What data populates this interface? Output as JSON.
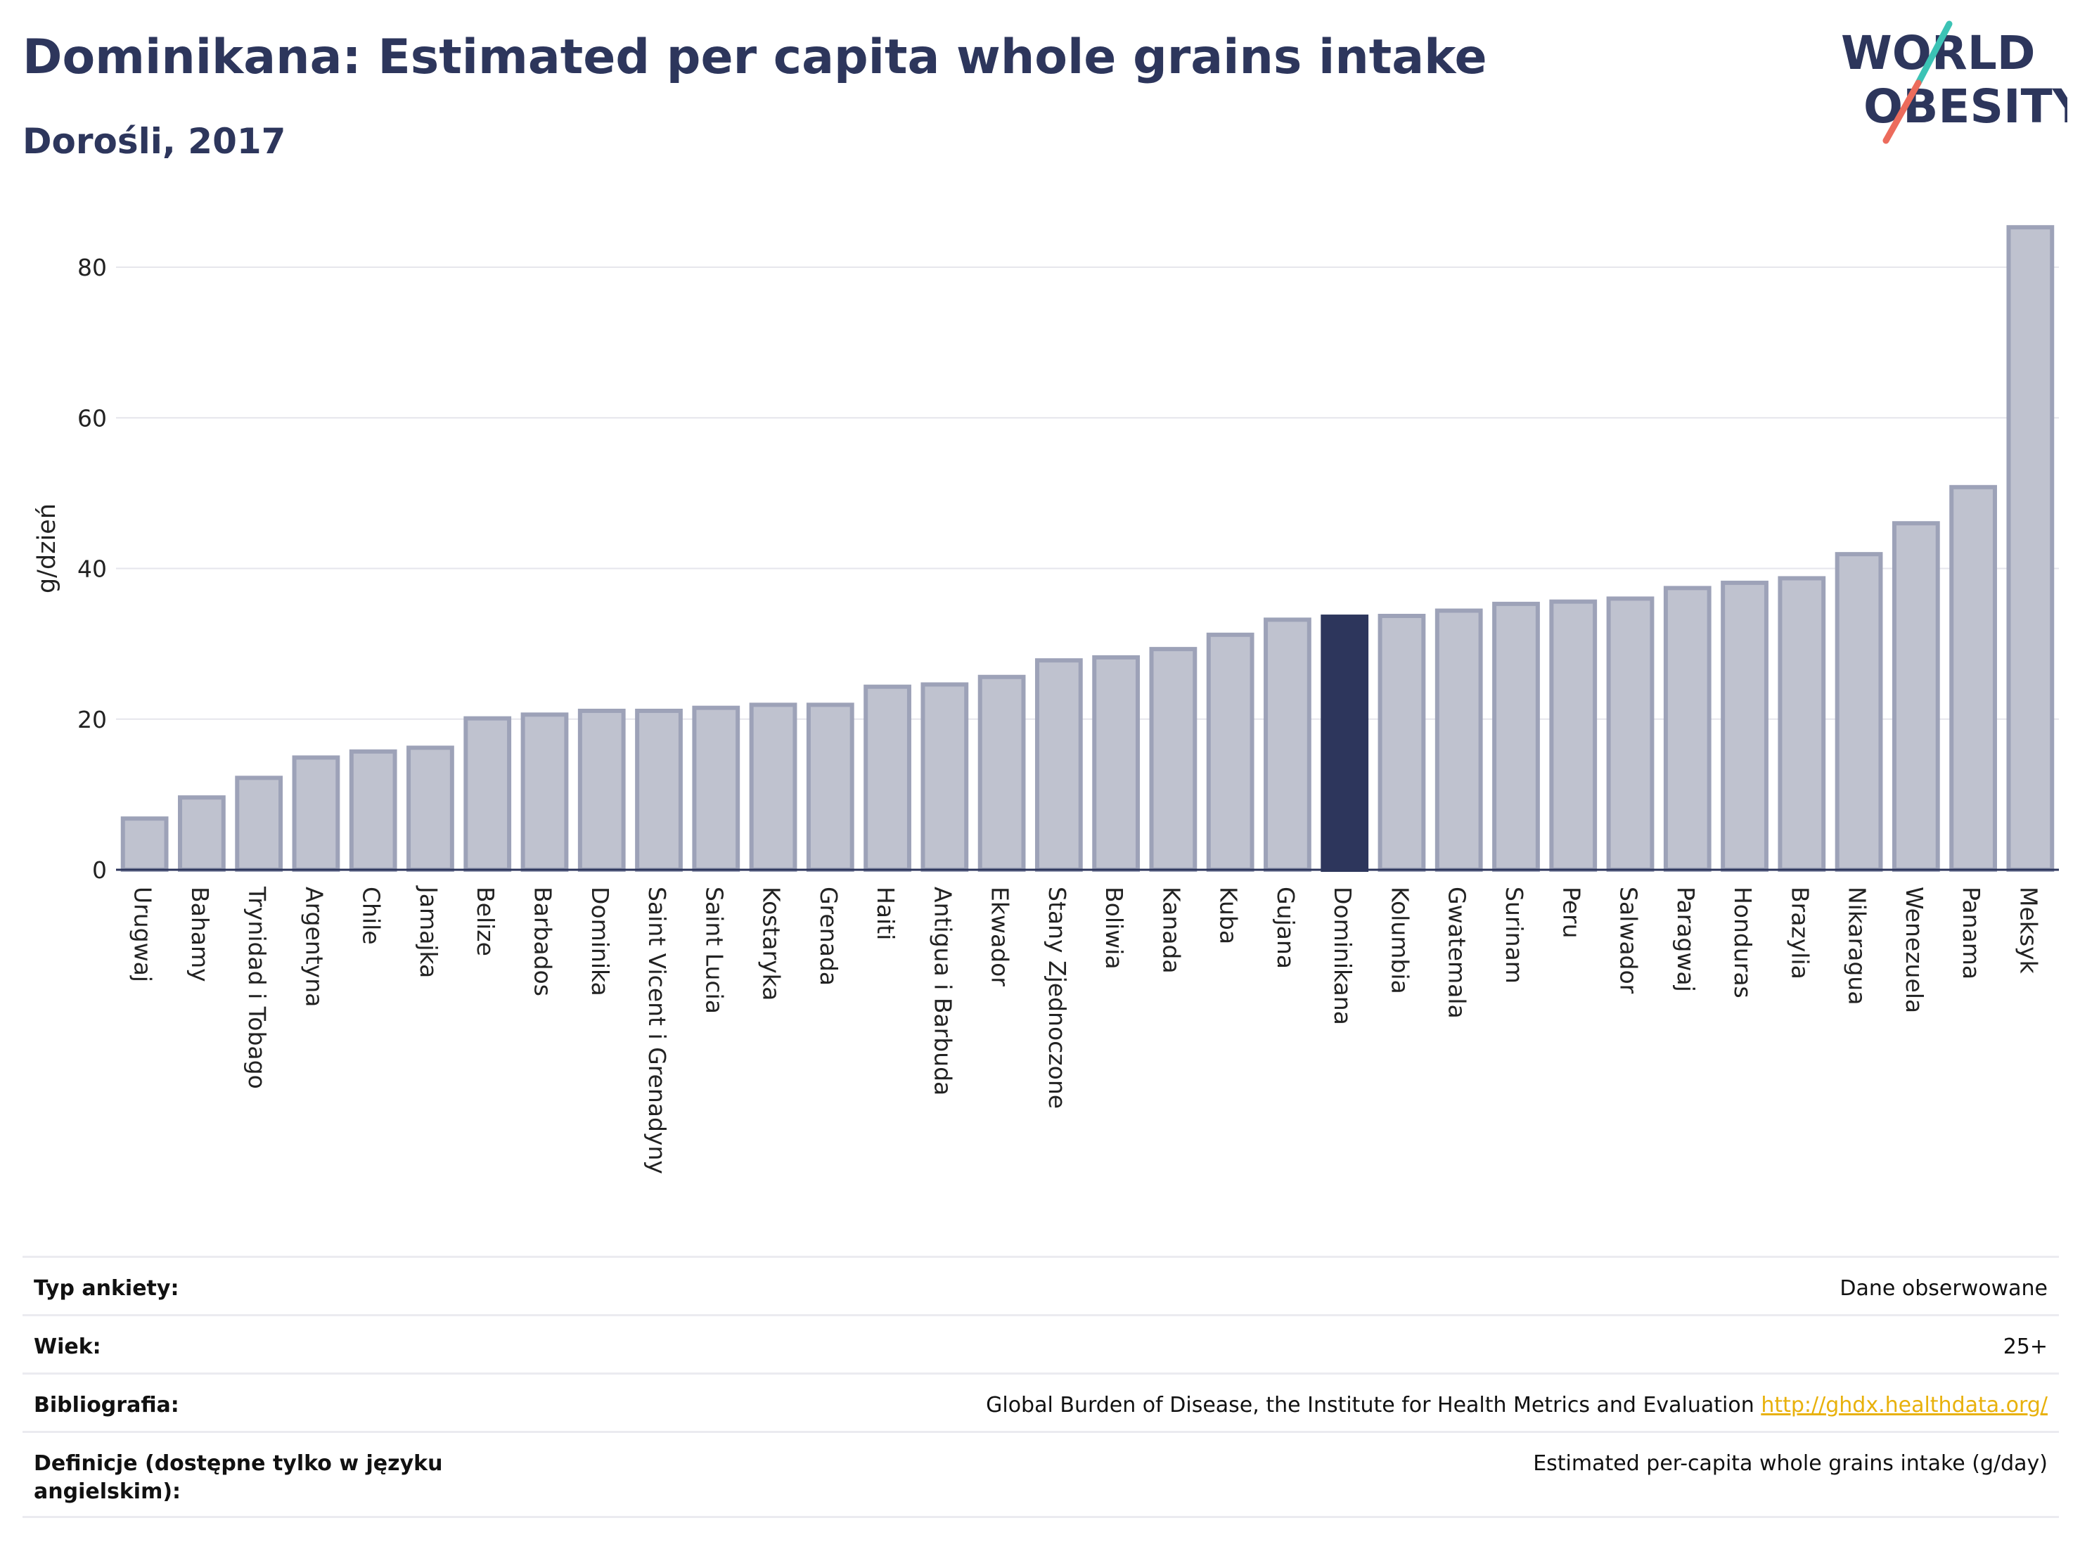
{
  "header": {
    "title": "Dominikana: Estimated per capita whole grains intake",
    "subtitle": "Dorośli, 2017",
    "logo_line1": "WORLD",
    "logo_line2": "OBESITY"
  },
  "colors": {
    "bar_fill": "#bfc2cf",
    "bar_stroke": "#9da2b8",
    "highlight": "#2d365c",
    "title": "#2d365c",
    "link": "#e8b10c",
    "logo_teal": "#3cc3b5",
    "logo_coral": "#ec6b5c"
  },
  "chart_data": {
    "type": "bar",
    "title": "Dominikana: Estimated per capita whole grains intake",
    "subtitle": "Dorośli, 2017",
    "xlabel": "",
    "ylabel": "g/dzień",
    "ylim": [
      0,
      88
    ],
    "yticks": [
      0,
      20,
      40,
      60,
      80
    ],
    "grid": true,
    "legend": "none",
    "highlight_category": "Dominikana",
    "categories": [
      "Urugwaj",
      "Bahamy",
      "Trynidad i Tobago",
      "Argentyna",
      "Chile",
      "Jamajka",
      "Belize",
      "Barbados",
      "Dominika",
      "Saint Vicent i Grenadyny",
      "Saint Lucia",
      "Kostaryka",
      "Grenada",
      "Haiti",
      "Antigua i Barbuda",
      "Ekwador",
      "Stany Zjednoczone",
      "Boliwia",
      "Kanada",
      "Kuba",
      "Gujana",
      "Dominikana",
      "Kolumbia",
      "Gwatemala",
      "Surinam",
      "Peru",
      "Salwador",
      "Paragwaj",
      "Honduras",
      "Brazylia",
      "Nikaragua",
      "Wenezuela",
      "Panama",
      "Meksyk"
    ],
    "values": [
      6.8,
      9.6,
      12.2,
      14.9,
      15.7,
      16.2,
      20.1,
      20.6,
      21.1,
      21.1,
      21.5,
      21.9,
      21.9,
      24.3,
      24.6,
      25.6,
      27.8,
      28.2,
      29.3,
      31.2,
      33.2,
      33.6,
      33.7,
      34.4,
      35.3,
      35.6,
      36.0,
      37.4,
      38.1,
      38.7,
      41.9,
      46.0,
      50.8,
      85.3
    ]
  },
  "meta": {
    "rows": [
      {
        "label": "Typ ankiety:",
        "value": "Dane obserwowane"
      },
      {
        "label": "Wiek:",
        "value": "25+"
      },
      {
        "label": "Bibliografia:",
        "value": "Global Burden of Disease, the Institute for Health Metrics and Evaluation",
        "link": "http://ghdx.healthdata.org/"
      },
      {
        "label": "Definicje (dostępne tylko w języku angielskim):",
        "value": "Estimated per-capita whole grains intake (g/day)"
      }
    ]
  }
}
